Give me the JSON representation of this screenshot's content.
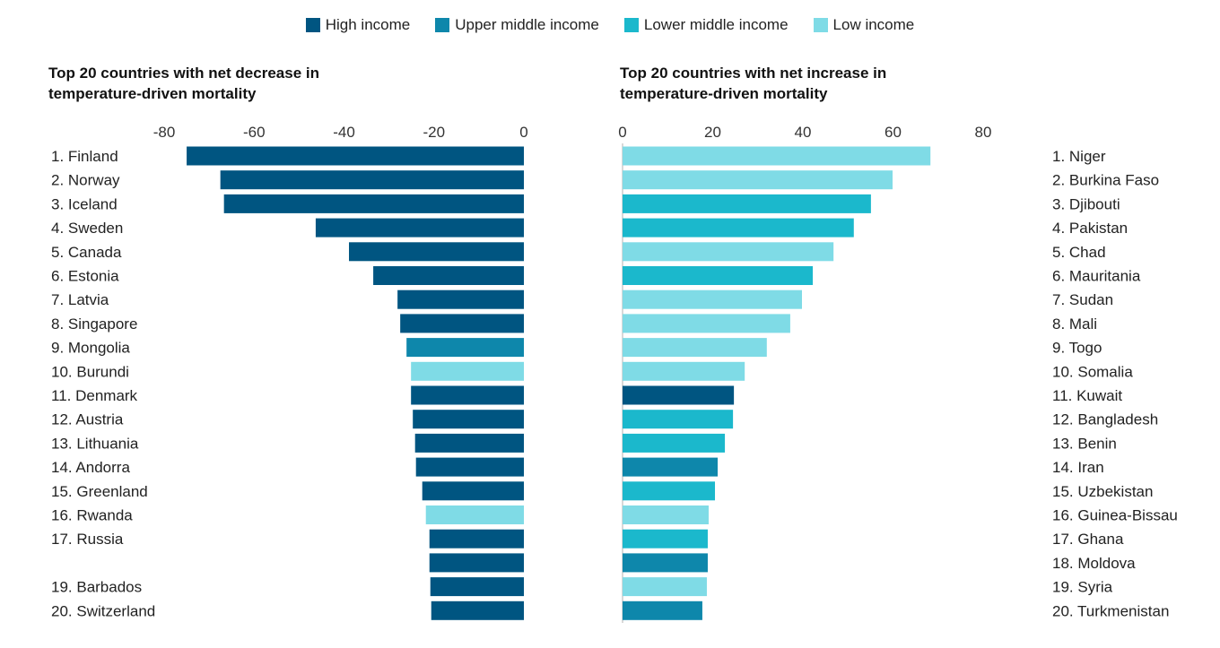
{
  "legend": [
    {
      "label": "High income",
      "color": "#005581"
    },
    {
      "label": "Upper middle income",
      "color": "#0e87ab"
    },
    {
      "label": "Lower middle income",
      "color": "#1bb8cc"
    },
    {
      "label": "Low income",
      "color": "#7fdbe6"
    }
  ],
  "chart_data": [
    {
      "type": "bar",
      "orientation": "horizontal",
      "title": "Top 20 countries with net decrease in temperature-driven mortality",
      "xlim": [
        -80,
        0
      ],
      "xticks": [
        "-80",
        "-60",
        "-40",
        "-20",
        "0"
      ],
      "grid": false,
      "categories": [
        "1. Finland",
        "2. Norway",
        "3. Iceland",
        "4. Sweden",
        "5. Canada",
        "6. Estonia",
        "7. Latvia",
        "8. Singapore",
        "9. Mongolia",
        "10. Burundi",
        "11. Denmark",
        "12. Austria",
        "13. Lithuania",
        "14. Andorra",
        "15. Greenland",
        "16. Rwanda",
        "17. Russia",
        "",
        "19. Barbados",
        "20. Switzerland"
      ],
      "values": [
        -75,
        -67.5,
        -66.7,
        -46.3,
        -38.9,
        -33.5,
        -28.1,
        -27.5,
        -26.1,
        -25.1,
        -25.1,
        -24.7,
        -24.2,
        -24,
        -22.6,
        -21.8,
        -21,
        -21,
        -20.8,
        -20.6
      ],
      "income": [
        "High income",
        "High income",
        "High income",
        "High income",
        "High income",
        "High income",
        "High income",
        "High income",
        "Upper middle income",
        "Low income",
        "High income",
        "High income",
        "High income",
        "High income",
        "High income",
        "Low income",
        "High income",
        "High income",
        "High income",
        "High income"
      ]
    },
    {
      "type": "bar",
      "orientation": "horizontal",
      "title": "Top 20 countries with net increase in temperature-driven mortality",
      "xlim": [
        0,
        80
      ],
      "xticks": [
        "0",
        "20",
        "40",
        "60",
        "80"
      ],
      "grid": false,
      "categories": [
        "1. Niger",
        "2. Burkina Faso",
        "3. Djibouti",
        "4. Pakistan",
        "5. Chad",
        "6. Mauritania",
        "7. Sudan",
        "8. Mali",
        "9. Togo",
        "10. Somalia",
        "11. Kuwait",
        "12. Bangladesh",
        "13. Benin",
        "14. Iran",
        "15. Uzbekistan",
        "16. Guinea-Bissau",
        "17. Ghana",
        "18. Moldova",
        "19. Syria",
        "20. Turkmenistan"
      ],
      "values": [
        68.3,
        59.9,
        55.1,
        51.3,
        46.8,
        42.2,
        39.8,
        37.2,
        32,
        27.1,
        24.7,
        24.5,
        22.7,
        21.1,
        20.5,
        19.1,
        18.9,
        18.9,
        18.7,
        17.7
      ],
      "income": [
        "Low income",
        "Low income",
        "Lower middle income",
        "Lower middle income",
        "Low income",
        "Lower middle income",
        "Low income",
        "Low income",
        "Low income",
        "Low income",
        "High income",
        "Lower middle income",
        "Lower middle income",
        "Upper middle income",
        "Lower middle income",
        "Low income",
        "Lower middle income",
        "Upper middle income",
        "Low income",
        "Upper middle income"
      ]
    }
  ]
}
